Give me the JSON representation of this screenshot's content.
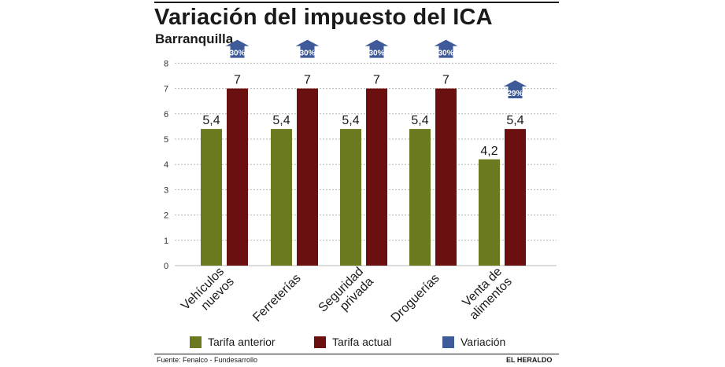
{
  "header": {
    "title": "Variación del impuesto del ICA",
    "subtitle": "Barranquilla"
  },
  "legend": {
    "items": [
      {
        "label": "Tarifa anterior",
        "color": "#6b7a1e"
      },
      {
        "label": "Tarifa actual",
        "color": "#6b1010"
      },
      {
        "label": "Variación",
        "color": "#3f5a98"
      }
    ]
  },
  "footer": {
    "source": "Fuente: Fenalco - Fundesarrollo",
    "brand": "EL HERALDO"
  },
  "chart_data": {
    "type": "bar",
    "title": "Variación del impuesto del ICA",
    "subtitle": "Barranquilla",
    "categories": [
      [
        "Vehículos",
        "nuevos"
      ],
      [
        "Ferreterías"
      ],
      [
        "Seguridad",
        "privada"
      ],
      [
        "Droguerías"
      ],
      [
        "Venta de",
        "alimentos"
      ]
    ],
    "series": [
      {
        "name": "Tarifa anterior",
        "color": "#6b7a1e",
        "values": [
          5.4,
          5.4,
          5.4,
          5.4,
          4.2
        ],
        "labels": [
          "5,4",
          "5,4",
          "5,4",
          "5,4",
          "4,2"
        ]
      },
      {
        "name": "Tarifa actual",
        "color": "#6b1010",
        "values": [
          7,
          7,
          7,
          7,
          5.4
        ],
        "labels": [
          "7",
          "7",
          "7",
          "7",
          "5,4"
        ]
      }
    ],
    "variation": {
      "name": "Variación",
      "color": "#3f5a98",
      "labels": [
        "30%",
        "30%",
        "30%",
        "30%",
        "29%"
      ]
    },
    "yticks": [
      0,
      1,
      2,
      3,
      4,
      5,
      6,
      7,
      8
    ],
    "ylim": [
      0,
      8
    ],
    "grid": "horizontal dashed",
    "xlabel": "",
    "ylabel": "",
    "legend_position": "bottom"
  }
}
